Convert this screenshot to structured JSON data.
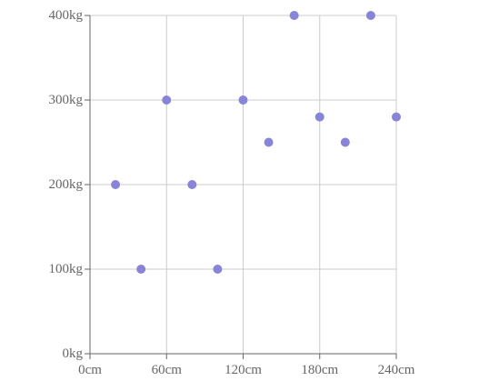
{
  "chart_data": {
    "type": "scatter",
    "title": "",
    "xlabel": "",
    "ylabel": "",
    "x_unit": "cm",
    "y_unit": "kg",
    "xlim": [
      0,
      240
    ],
    "ylim": [
      0,
      400
    ],
    "x_ticks": [
      0,
      60,
      120,
      180,
      240
    ],
    "y_ticks": [
      0,
      100,
      200,
      300,
      400
    ],
    "x_tick_labels": [
      "0cm",
      "60cm",
      "120cm",
      "180cm",
      "240cm"
    ],
    "y_tick_labels": [
      "0kg",
      "100kg",
      "200kg",
      "300kg",
      "400kg"
    ],
    "grid": true,
    "legend": "none",
    "series": [
      {
        "color": "#8884d8",
        "points": [
          {
            "x": 20,
            "y": 200
          },
          {
            "x": 40,
            "y": 100
          },
          {
            "x": 60,
            "y": 300
          },
          {
            "x": 80,
            "y": 200
          },
          {
            "x": 100,
            "y": 100
          },
          {
            "x": 120,
            "y": 300
          },
          {
            "x": 140,
            "y": 250
          },
          {
            "x": 160,
            "y": 400
          },
          {
            "x": 180,
            "y": 280
          },
          {
            "x": 200,
            "y": 250
          },
          {
            "x": 220,
            "y": 400
          },
          {
            "x": 240,
            "y": 280
          }
        ]
      }
    ]
  }
}
